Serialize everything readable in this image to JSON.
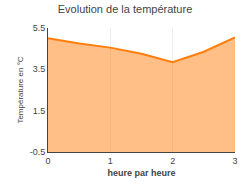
{
  "chart_data": {
    "type": "area",
    "title": "Evolution de la température",
    "xlabel": "heure par heure",
    "ylabel": "Température en °C",
    "x": [
      0,
      0.5,
      1,
      1.5,
      2,
      2.5,
      3
    ],
    "values": [
      5.0,
      4.75,
      4.55,
      4.25,
      3.85,
      4.35,
      5.05
    ],
    "xlim": [
      0,
      3
    ],
    "ylim": [
      -0.5,
      5.5
    ],
    "xticks": [
      0,
      1,
      2,
      3
    ],
    "yticks": [
      -0.5,
      1.5,
      3.5,
      5.5
    ],
    "grid": "x"
  }
}
